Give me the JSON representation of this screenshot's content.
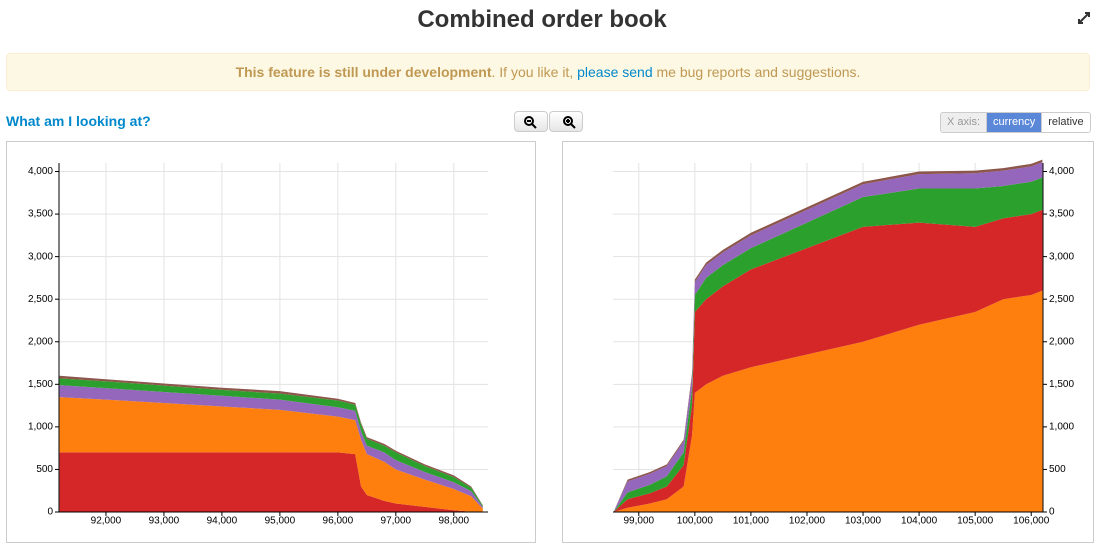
{
  "header": {
    "title": "Combined order book"
  },
  "notice": {
    "bold": "This feature is still under development",
    "text1": ". If you like it, ",
    "link": "please send",
    "text2": " me bug reports and suggestions."
  },
  "help_link": "What am I looking at?",
  "x_axis_toggle": {
    "label": "X axis:",
    "options": [
      "currency",
      "relative"
    ],
    "selected": 0
  },
  "chart_data": [
    {
      "type": "stacked-area",
      "y_axis_side": "left",
      "grid": true,
      "x": [
        91200,
        92000,
        93000,
        94000,
        95000,
        96000,
        96300,
        96400,
        96500,
        96800,
        97000,
        97500,
        98000,
        98300,
        98500
      ],
      "series": [
        {
          "color": "#d62728",
          "values": [
            700,
            700,
            700,
            700,
            700,
            700,
            680,
            300,
            200,
            130,
            100,
            60,
            20,
            5,
            0
          ]
        },
        {
          "color": "#ff7f0e",
          "values": [
            650,
            620,
            580,
            540,
            500,
            420,
            400,
            550,
            480,
            460,
            400,
            320,
            250,
            180,
            40
          ]
        },
        {
          "color": "#9467bd",
          "values": [
            140,
            135,
            130,
            125,
            120,
            110,
            110,
            100,
            100,
            110,
            110,
            90,
            80,
            60,
            20
          ]
        },
        {
          "color": "#2ca02c",
          "values": [
            80,
            80,
            75,
            70,
            70,
            80,
            70,
            80,
            80,
            80,
            90,
            70,
            60,
            40,
            15
          ]
        },
        {
          "color": "#8c564b",
          "values": [
            30,
            25,
            25,
            25,
            30,
            20,
            20,
            20,
            20,
            20,
            20,
            20,
            20,
            15,
            5
          ]
        }
      ],
      "xlim": [
        91190,
        98590
      ],
      "xticks": [
        {
          "value": 92000,
          "label": "92,000"
        },
        {
          "value": 93000,
          "label": "93,000"
        },
        {
          "value": 94000,
          "label": "94,000"
        },
        {
          "value": 95000,
          "label": "95,000"
        },
        {
          "value": 96000,
          "label": "96,000"
        },
        {
          "value": 97000,
          "label": "97,000"
        },
        {
          "value": 98000,
          "label": "98,000"
        }
      ],
      "ylim": [
        0,
        4100
      ],
      "yticks": [
        0,
        500,
        {
          "value": 1000,
          "label": "1,000"
        },
        {
          "value": 1500,
          "label": "1,500"
        },
        {
          "value": 2000,
          "label": "2,000"
        },
        {
          "value": 2500,
          "label": "2,500"
        },
        {
          "value": 3000,
          "label": "3,000"
        },
        {
          "value": 3500,
          "label": "3,500"
        },
        {
          "value": 4000,
          "label": "4,000"
        }
      ]
    },
    {
      "type": "stacked-area",
      "y_axis_side": "right",
      "grid": true,
      "x": [
        98550,
        98800,
        99200,
        99500,
        99800,
        99950,
        100000,
        100200,
        100500,
        101000,
        102000,
        103000,
        104000,
        105000,
        105500,
        106000,
        106200
      ],
      "series": [
        {
          "color": "#ff7f0e",
          "values": [
            0,
            50,
            100,
            150,
            300,
            900,
            1400,
            1500,
            1600,
            1700,
            1850,
            2000,
            2200,
            2350,
            2500,
            2550,
            2600
          ]
        },
        {
          "color": "#d62728",
          "values": [
            0,
            100,
            120,
            150,
            250,
            350,
            950,
            1000,
            1050,
            1150,
            1250,
            1350,
            1200,
            1000,
            950,
            950,
            950
          ]
        },
        {
          "color": "#2ca02c",
          "values": [
            0,
            80,
            100,
            120,
            150,
            200,
            200,
            250,
            250,
            250,
            300,
            350,
            400,
            450,
            380,
            380,
            380
          ]
        },
        {
          "color": "#9467bd",
          "values": [
            0,
            130,
            130,
            120,
            130,
            150,
            150,
            150,
            150,
            150,
            150,
            150,
            170,
            180,
            180,
            180,
            180
          ]
        },
        {
          "color": "#8c564b",
          "values": [
            0,
            20,
            20,
            20,
            20,
            30,
            30,
            30,
            30,
            30,
            30,
            30,
            30,
            30,
            30,
            30,
            30
          ]
        }
      ],
      "xlim": [
        98540,
        106210
      ],
      "xticks": [
        {
          "value": 99000,
          "label": "99,000"
        },
        {
          "value": 100000,
          "label": "100,000"
        },
        {
          "value": 101000,
          "label": "101,000"
        },
        {
          "value": 102000,
          "label": "102,000"
        },
        {
          "value": 103000,
          "label": "103,000"
        },
        {
          "value": 104000,
          "label": "104,000"
        },
        {
          "value": 105000,
          "label": "105,000"
        },
        {
          "value": 106000,
          "label": "106,000"
        }
      ],
      "ylim": [
        0,
        4100
      ],
      "yticks": [
        0,
        500,
        {
          "value": 1000,
          "label": "1,000"
        },
        {
          "value": 1500,
          "label": "1,500"
        },
        {
          "value": 2000,
          "label": "2,000"
        },
        {
          "value": 2500,
          "label": "2,500"
        },
        {
          "value": 3000,
          "label": "3,000"
        },
        {
          "value": 3500,
          "label": "3,500"
        },
        {
          "value": 4000,
          "label": "4,000"
        }
      ]
    }
  ]
}
